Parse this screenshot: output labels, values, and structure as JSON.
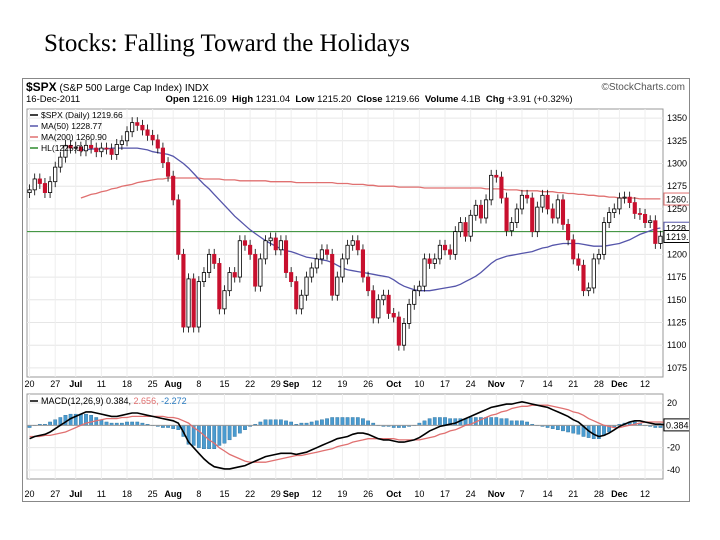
{
  "slide": {
    "title": "Stocks: Falling Toward the Holidays"
  },
  "header": {
    "symbol": "$SPX",
    "name": "(S&P 500 Large Cap Index)",
    "exchange": "INDX",
    "brand": "©StockCharts.com",
    "date": "16-Dec-2011",
    "open_label": "Open",
    "open": "1216.09",
    "high_label": "High",
    "high": "1231.04",
    "low_label": "Low",
    "low": "1215.20",
    "close_label": "Close",
    "close": "1219.66",
    "volume_label": "Volume",
    "volume": "4.1B",
    "chg_label": "Chg",
    "chg": "+3.91 (+0.32%)"
  },
  "legend": {
    "price": "$SPX (Daily) 1219.66",
    "ma50": "MA(50) 1228.77",
    "ma200": "MA(200) 1260.90",
    "hl": "HL(1225.0)"
  },
  "macd_legend": {
    "name": "MACD(12,26,9)",
    "macd": "0.384",
    "signal": "2.656",
    "hist": "-2.272"
  },
  "colors": {
    "up": "#ffffff",
    "down": "#c8102e",
    "ma50": "#5555aa",
    "ma200": "#e07070",
    "hl": "#2e8b2e",
    "hist": "#4a9bd0",
    "macd": "#000000",
    "signal": "#e07070"
  },
  "chart_data": [
    {
      "type": "candlestick",
      "title": "$SPX (S&P 500 Large Cap Index) INDX",
      "y_ticks": [
        1075,
        1100,
        1125,
        1150,
        1175,
        1200,
        1225,
        1250,
        1275,
        1300,
        1325,
        1350
      ],
      "ylim": [
        1065,
        1360
      ],
      "x_labels": [
        "20",
        "27",
        "Jul",
        "11",
        "18",
        "25",
        "Aug",
        "8",
        "15",
        "22",
        "29",
        "Sep",
        "12",
        "19",
        "26",
        "Oct",
        "10",
        "17",
        "24",
        "Nov",
        "7",
        "14",
        "21",
        "28",
        "Dec",
        "12"
      ],
      "x_label_pos": [
        0,
        5,
        9,
        14,
        19,
        24,
        28,
        33,
        38,
        43,
        48,
        51,
        56,
        61,
        66,
        71,
        76,
        81,
        86,
        91,
        96,
        101,
        106,
        111,
        115,
        120
      ],
      "closes": [
        1271,
        1283,
        1278,
        1268,
        1280,
        1296,
        1307,
        1320,
        1317,
        1318,
        1314,
        1320,
        1317,
        1313,
        1317,
        1316,
        1310,
        1321,
        1325,
        1335,
        1345,
        1342,
        1337,
        1331,
        1326,
        1317,
        1301,
        1286,
        1260,
        1200,
        1120,
        1173,
        1120,
        1170,
        1180,
        1200,
        1190,
        1140,
        1160,
        1180,
        1175,
        1215,
        1210,
        1200,
        1165,
        1195,
        1215,
        1218,
        1205,
        1215,
        1180,
        1170,
        1140,
        1155,
        1175,
        1185,
        1195,
        1205,
        1200,
        1155,
        1175,
        1195,
        1210,
        1215,
        1205,
        1175,
        1160,
        1130,
        1150,
        1155,
        1135,
        1131,
        1100,
        1124,
        1145,
        1160,
        1165,
        1195,
        1190,
        1195,
        1210,
        1205,
        1200,
        1225,
        1235,
        1220,
        1243,
        1254,
        1240,
        1260,
        1287,
        1285,
        1262,
        1226,
        1235,
        1250,
        1265,
        1262,
        1225,
        1252,
        1265,
        1250,
        1240,
        1260,
        1233,
        1216,
        1195,
        1188,
        1160,
        1163,
        1195,
        1200,
        1235,
        1246,
        1250,
        1262,
        1263,
        1257,
        1245,
        1244,
        1235,
        1237,
        1212,
        1220
      ],
      "ma50": [
        null,
        null,
        null,
        null,
        null,
        null,
        null,
        null,
        null,
        null,
        1315,
        1315,
        1316,
        1316,
        1316,
        1316,
        1317,
        1317,
        1317,
        1317,
        1317,
        1317,
        1316,
        1315,
        1313,
        1312,
        1311,
        1310,
        1308,
        1304,
        1300,
        1295,
        1289,
        1283,
        1277,
        1272,
        1266,
        1260,
        1254,
        1248,
        1242,
        1237,
        1232,
        1227,
        1223,
        1219,
        1215,
        1212,
        1209,
        1206,
        1204,
        1203,
        1201,
        1199,
        1197,
        1196,
        1195,
        1194,
        1193,
        1191,
        1188,
        1185,
        1183,
        1182,
        1181,
        1180,
        1179,
        1178,
        1177,
        1176,
        1175,
        1172,
        1168,
        1165,
        1163,
        1161,
        1160,
        1160,
        1160,
        1161,
        1162,
        1163,
        1164,
        1165,
        1167,
        1170,
        1173,
        1176,
        1180,
        1185,
        1190,
        1194,
        1196,
        1198,
        1199,
        1200,
        1201,
        1202,
        1203,
        1205,
        1207,
        1208,
        1210,
        1211,
        1212,
        1212,
        1212,
        1212,
        1211,
        1210,
        1209,
        1209,
        1209,
        1210,
        1211,
        1212,
        1214,
        1216,
        1219,
        1222,
        1224,
        1226,
        1228,
        1229
      ],
      "ma200": [
        null,
        null,
        null,
        null,
        null,
        null,
        null,
        null,
        null,
        null,
        1262,
        1264,
        1266,
        1267,
        1269,
        1270,
        1272,
        1273,
        1275,
        1276,
        1277,
        1279,
        1280,
        1281,
        1282,
        1283,
        1283,
        1284,
        1284,
        1284,
        1284,
        1284,
        1284,
        1284,
        1283,
        1283,
        1283,
        1283,
        1282,
        1282,
        1282,
        1281,
        1281,
        1281,
        1281,
        1281,
        1281,
        1280,
        1280,
        1280,
        1280,
        1280,
        1279,
        1279,
        1279,
        1279,
        1279,
        1279,
        1279,
        1279,
        1278,
        1278,
        1278,
        1277,
        1277,
        1277,
        1276,
        1276,
        1275,
        1275,
        1275,
        1275,
        1274,
        1274,
        1274,
        1274,
        1274,
        1273,
        1273,
        1273,
        1273,
        1273,
        1273,
        1273,
        1273,
        1273,
        1273,
        1273,
        1273,
        1272,
        1272,
        1272,
        1272,
        1271,
        1271,
        1271,
        1270,
        1270,
        1270,
        1270,
        1269,
        1269,
        1269,
        1268,
        1268,
        1267,
        1267,
        1266,
        1266,
        1265,
        1265,
        1264,
        1264,
        1263,
        1263,
        1262,
        1262,
        1262,
        1262,
        1261,
        1261,
        1261,
        1261,
        1261
      ],
      "hl": 1225
    },
    {
      "type": "line",
      "title": "MACD(12,26,9)",
      "y_ticks": [
        -40,
        -20,
        0,
        20
      ],
      "ylim": [
        -48,
        28
      ],
      "series": [
        {
          "name": "MACD",
          "values": [
            -12,
            -10,
            -9,
            -8,
            -6,
            -3,
            0,
            3,
            6,
            8,
            10,
            12,
            12,
            11,
            10,
            9,
            8,
            8,
            9,
            10,
            11,
            11,
            10,
            9,
            8,
            7,
            6,
            5,
            4,
            2,
            -6,
            -15,
            -20,
            -25,
            -30,
            -34,
            -37,
            -38,
            -39,
            -39,
            -38,
            -37,
            -36,
            -34,
            -32,
            -30,
            -28,
            -27,
            -26,
            -25,
            -25,
            -25,
            -26,
            -25,
            -24,
            -22,
            -20,
            -18,
            -16,
            -14,
            -12,
            -11,
            -10,
            -8,
            -7,
            -7,
            -8,
            -10,
            -12,
            -13,
            -13,
            -14,
            -15,
            -15,
            -14,
            -13,
            -11,
            -8,
            -5,
            -3,
            -1,
            0,
            1,
            2,
            4,
            6,
            8,
            10,
            12,
            14,
            16,
            17,
            18,
            19,
            19,
            20,
            21,
            20,
            19,
            18,
            17,
            16,
            14,
            12,
            10,
            8,
            5,
            3,
            -1,
            -5,
            -8,
            -10,
            -9,
            -7,
            -4,
            -1,
            1,
            3,
            4,
            4,
            3,
            2,
            1,
            1,
            0.4
          ]
        },
        {
          "name": "Signal",
          "values": [
            -10,
            -10,
            -10,
            -9,
            -9,
            -8,
            -7,
            -6,
            -4,
            -2,
            0,
            2,
            3,
            4,
            5,
            6,
            6,
            6,
            7,
            7,
            8,
            8,
            8,
            8,
            8,
            8,
            8,
            7,
            7,
            6,
            4,
            2,
            -2,
            -5,
            -9,
            -13,
            -16,
            -20,
            -23,
            -26,
            -28,
            -30,
            -32,
            -33,
            -33,
            -33,
            -33,
            -32,
            -31,
            -30,
            -29,
            -28,
            -27,
            -27,
            -26,
            -25,
            -24,
            -23,
            -22,
            -21,
            -19,
            -18,
            -17,
            -15,
            -14,
            -13,
            -12,
            -12,
            -12,
            -12,
            -12,
            -12,
            -13,
            -13,
            -13,
            -13,
            -13,
            -12,
            -11,
            -10,
            -8,
            -7,
            -5,
            -4,
            -2,
            0,
            1,
            3,
            5,
            7,
            9,
            10,
            12,
            13,
            15,
            16,
            17,
            17,
            18,
            18,
            18,
            18,
            17,
            16,
            15,
            14,
            12,
            11,
            9,
            6,
            4,
            2,
            0,
            -1,
            -2,
            -2,
            -1,
            0,
            1,
            2,
            3,
            3,
            3,
            3,
            2.7
          ]
        }
      ]
    }
  ]
}
